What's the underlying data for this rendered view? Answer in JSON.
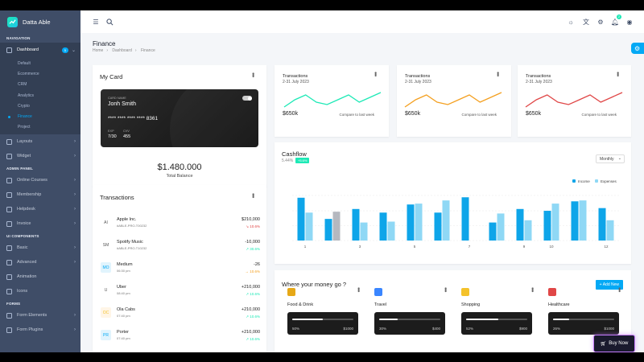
{
  "app": {
    "name": "Datta Able"
  },
  "sidebar": {
    "captions": [
      "NAVIGATION",
      "ADMIN PANEL",
      "UI COMPONENTS",
      "FORMS"
    ],
    "dashboard": {
      "label": "Dashboard",
      "badge": "5"
    },
    "dashboard_sub": [
      "Default",
      "Ecommerce",
      "CRM",
      "Analytics",
      "Crypto",
      "Finance",
      "Project"
    ],
    "nav_items": [
      "Layouts",
      "Widget"
    ],
    "admin_items": [
      "Online Courses",
      "Membership",
      "Helpdesk",
      "Invoice"
    ],
    "ui_items": [
      "Basic",
      "Advanced",
      "Animation",
      "Icons"
    ],
    "form_items": [
      "Form Elements",
      "Form Plugins"
    ]
  },
  "page": {
    "title": "Finance",
    "breadcrumb": [
      "Home",
      "Dashboard",
      "Finance"
    ]
  },
  "notifications": {
    "count": "2"
  },
  "my_card": {
    "title": "My Card",
    "card_name_label": "CARD NAME",
    "card_name": "Jonh Smith",
    "number": "**** **** **** **** 8361",
    "exp_label": "EXP",
    "exp": "7/30",
    "cvv_label": "CVV",
    "cvv": "455",
    "balance": "$1.480.000",
    "balance_label": "Total Balance"
  },
  "transactions": {
    "title": "Transactions",
    "rows": [
      {
        "avatar": "AI",
        "name": "Apple Inc.",
        "ref": "#ABLE-PRO-T00232",
        "amount": "$210,000",
        "change": "10.6%",
        "trend": "down",
        "avatar_bg": "#ffffff",
        "avatar_color": "#555555"
      },
      {
        "avatar": "SM",
        "name": "Spotify Music",
        "ref": "#ABLE-PRO-T10232",
        "amount": "-10,000",
        "change": "30.6%",
        "trend": "up",
        "avatar_bg": "#ffffff",
        "avatar_color": "#555555"
      },
      {
        "avatar": "MO",
        "name": "Medium",
        "ref": "06:30 pm",
        "amount": "-26",
        "change": "10.6%",
        "trend": "flat",
        "avatar_bg": "#e1f4fd",
        "avatar_color": "#04a9f5"
      },
      {
        "avatar": "U",
        "name": "Uber",
        "ref": "08:40 pm",
        "amount": "+210,000",
        "change": "10.6%",
        "trend": "up",
        "avatar_bg": "#ffffff",
        "avatar_color": "#555555"
      },
      {
        "avatar": "OC",
        "name": "Ola Cabs",
        "ref": "07:40 pm",
        "amount": "+210,000",
        "change": "10.6%",
        "trend": "up",
        "avatar_bg": "#fff5e6",
        "avatar_color": "#f4c22b"
      },
      {
        "avatar": "PR",
        "name": "Porter",
        "ref": "07:40 pm",
        "amount": "+210,000",
        "change": "10.6%",
        "trend": "up",
        "avatar_bg": "#e1f4fd",
        "avatar_color": "#04a9f5"
      }
    ]
  },
  "tx_cards": [
    {
      "title": "Transactions",
      "date": "2-31 July 2023",
      "amount": "$650k",
      "compare": "Compare to last week",
      "color": "#1de9b6",
      "spark": [
        4,
        7,
        9,
        6,
        5,
        7,
        9,
        6,
        8,
        10
      ]
    },
    {
      "title": "Transactions",
      "date": "2-31 July 2023",
      "amount": "$650k",
      "compare": "Compare to last week",
      "color": "#f4a020",
      "spark": [
        4,
        7,
        9,
        6,
        5,
        7,
        9,
        6,
        8,
        10
      ]
    },
    {
      "title": "Transactions",
      "date": "2-31 July 2023",
      "amount": "$650k",
      "compare": "Compare to last week",
      "color": "#e04747",
      "spark": [
        4,
        7,
        9,
        6,
        5,
        7,
        9,
        6,
        8,
        10
      ]
    }
  ],
  "cashflow": {
    "title": "Cashflow",
    "value": "5.44%",
    "badge": "+5.6%",
    "select": "Monthly"
  },
  "chart_data": {
    "type": "bar",
    "categories": [
      "1",
      "2",
      "3",
      "4",
      "5",
      "6",
      "7",
      "8",
      "9",
      "10",
      "11",
      "12"
    ],
    "x_tick_labels": [
      "1",
      "3",
      "5",
      "7",
      "9",
      "10",
      "12"
    ],
    "series": [
      {
        "name": "Income",
        "color": "#0ea5e9",
        "values": [
          95,
          48,
          70,
          62,
          80,
          62,
          96,
          40,
          70,
          66,
          87,
          72
        ]
      },
      {
        "name": "Expenses",
        "color": "#8fd8f5",
        "values": [
          62,
          0,
          40,
          42,
          82,
          89,
          0,
          60,
          45,
          82,
          89,
          45
        ]
      }
    ],
    "extra_bar": {
      "category": "2",
      "value": 64,
      "color": "#b5b8bf"
    },
    "legend_position": "top-right",
    "ylim": [
      0,
      100
    ],
    "grid": true
  },
  "money": {
    "title": "Where your money go ?",
    "add_new": "+ Add New",
    "items": [
      {
        "label": "Food & Drink",
        "pct": "50%",
        "progress": 0.5,
        "max": "$1000",
        "icon_color": "#e6a817"
      },
      {
        "label": "Travel",
        "pct": "30%",
        "progress": 0.3,
        "max": "$400",
        "icon_color": "#3a86ff"
      },
      {
        "label": "Shopping",
        "pct": "52%",
        "progress": 0.52,
        "max": "$900",
        "icon_color": "#f4c22b"
      },
      {
        "label": "Healthcare",
        "pct": "26%",
        "progress": 0.26,
        "max": "$1000",
        "icon_color": "#e04747"
      }
    ]
  },
  "buy_now": {
    "label": "Buy Now"
  }
}
